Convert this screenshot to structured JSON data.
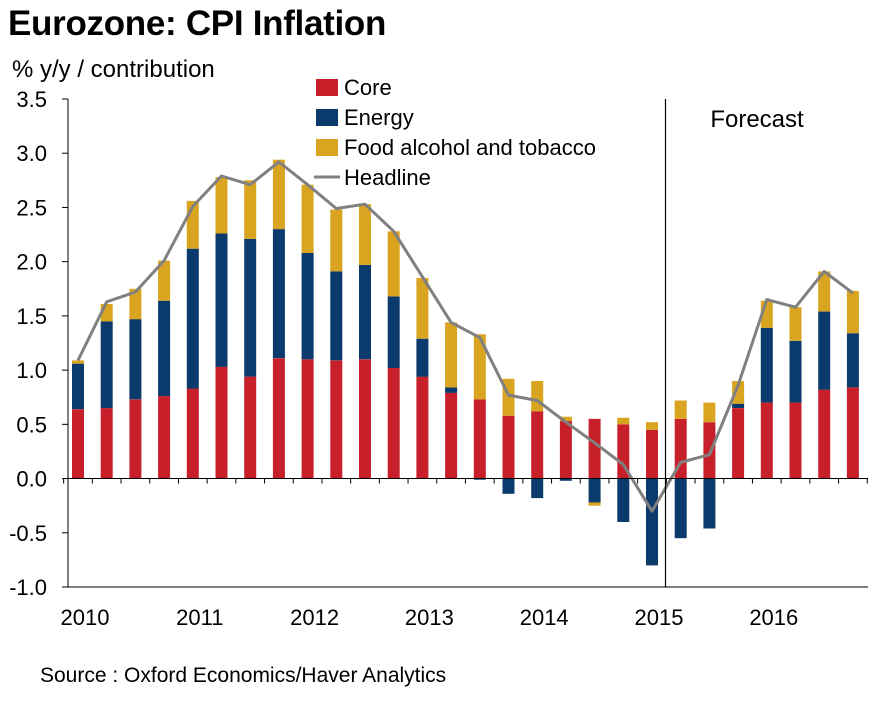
{
  "title": "Eurozone: CPI Inflation",
  "subtitle": "% y/y / contribution",
  "source": "Source : Oxford Economics/Haver Analytics",
  "colors": {
    "core": "#c8202a",
    "energy": "#0b3a6c",
    "food": "#d9a520",
    "headline": "#808080"
  },
  "chart_data": {
    "type": "bar",
    "stacked": true,
    "ylabel": "% y/y / contribution",
    "ylim": [
      -1.0,
      3.5
    ],
    "yticks": [
      "3.5",
      "3.0",
      "2.5",
      "2.0",
      "1.5",
      "1.0",
      "0.5",
      "0.0",
      "-0.5",
      "-1.0"
    ],
    "ytick_values": [
      3.5,
      3.0,
      2.5,
      2.0,
      1.5,
      1.0,
      0.5,
      0.0,
      -0.5,
      -1.0
    ],
    "xticks": [
      "2010",
      "2011",
      "2012",
      "2013",
      "2014",
      "2015",
      "2016"
    ],
    "xtick_positions": [
      0,
      4,
      8,
      12,
      16,
      20,
      24
    ],
    "categories": [
      "2010Q1",
      "2010Q2",
      "2010Q3",
      "2010Q4",
      "2011Q1",
      "2011Q2",
      "2011Q3",
      "2011Q4",
      "2012Q1",
      "2012Q2",
      "2012Q3",
      "2012Q4",
      "2013Q1",
      "2013Q2",
      "2013Q3",
      "2013Q4",
      "2014Q1",
      "2014Q2",
      "2014Q3",
      "2014Q4",
      "2015Q1",
      "2015Q2",
      "2015Q3",
      "2015Q4",
      "2016Q1",
      "2016Q2",
      "2016Q3",
      "2016Q4"
    ],
    "forecast_label": "Forecast",
    "forecast_start_index": 20,
    "legend_position": "top-center",
    "legend": [
      "Core",
      "Energy",
      "Food alcohol and tobacco",
      "Headline"
    ],
    "series": [
      {
        "name": "Core",
        "kind": "bar",
        "values": [
          0.64,
          0.65,
          0.73,
          0.76,
          0.83,
          1.03,
          0.94,
          1.11,
          1.1,
          1.09,
          1.1,
          1.02,
          0.94,
          0.79,
          0.73,
          0.58,
          0.62,
          0.53,
          0.55,
          0.5,
          0.45,
          0.55,
          0.52,
          0.65,
          0.7,
          0.7,
          0.82,
          0.84
        ]
      },
      {
        "name": "Energy",
        "kind": "bar",
        "values": [
          0.42,
          0.8,
          0.74,
          0.88,
          1.29,
          1.23,
          1.27,
          1.19,
          0.98,
          0.82,
          0.87,
          0.66,
          0.35,
          0.05,
          -0.01,
          -0.14,
          -0.18,
          -0.02,
          -0.22,
          -0.4,
          -0.8,
          -0.55,
          -0.46,
          0.04,
          0.69,
          0.57,
          0.72,
          0.5
        ]
      },
      {
        "name": "Food alcohol and tobacco",
        "kind": "bar",
        "values": [
          0.03,
          0.16,
          0.28,
          0.37,
          0.44,
          0.52,
          0.54,
          0.64,
          0.63,
          0.57,
          0.56,
          0.6,
          0.56,
          0.6,
          0.6,
          0.34,
          0.28,
          0.04,
          -0.03,
          0.06,
          0.07,
          0.17,
          0.18,
          0.21,
          0.25,
          0.31,
          0.37,
          0.39
        ]
      },
      {
        "name": "Headline",
        "kind": "line",
        "values": [
          1.09,
          1.63,
          1.72,
          2.01,
          2.51,
          2.79,
          2.71,
          2.92,
          2.71,
          2.49,
          2.53,
          2.28,
          1.86,
          1.44,
          1.3,
          0.77,
          0.72,
          0.52,
          0.33,
          0.13,
          -0.3,
          0.15,
          0.22,
          0.86,
          1.65,
          1.58,
          1.91,
          1.71
        ]
      }
    ]
  }
}
